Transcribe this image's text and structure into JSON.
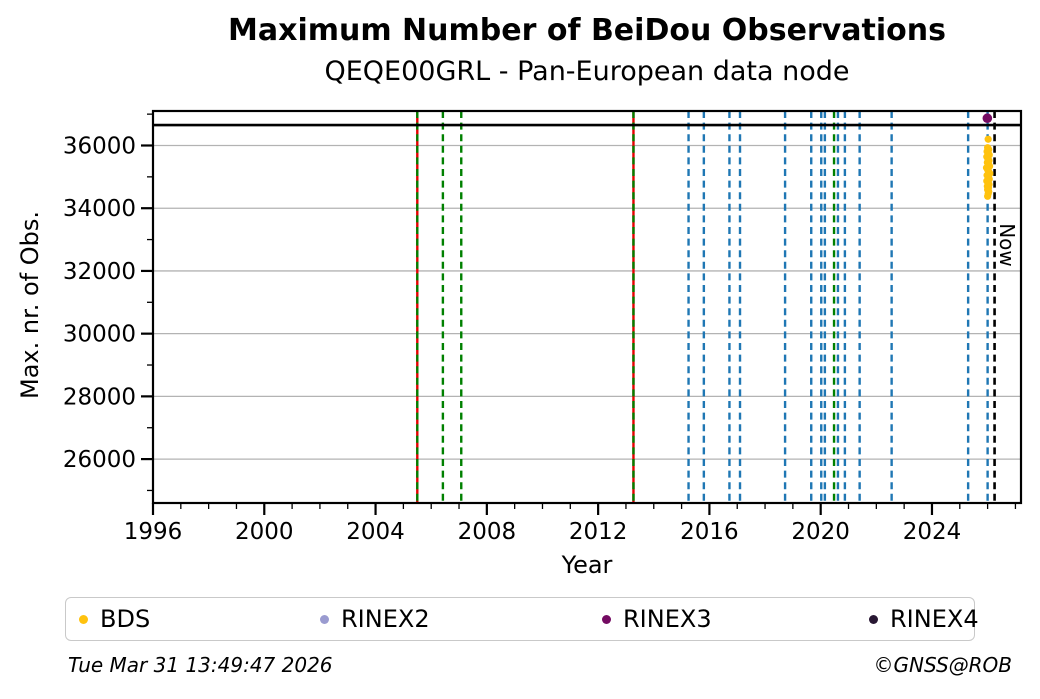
{
  "title": "Maximum Number of BeiDou Observations",
  "subtitle": "QEQE00GRL - Pan-European data node",
  "footer": {
    "timestamp": "Tue Mar 31 13:49:47 2026",
    "credit": "©GNSS@ROB"
  },
  "legend": {
    "items": [
      {
        "label": "BDS",
        "color": "#ffc20e"
      },
      {
        "label": "RINEX2",
        "color": "#9a9bd0"
      },
      {
        "label": "RINEX3",
        "color": "#740b62"
      },
      {
        "label": "RINEX4",
        "color": "#281733"
      }
    ]
  },
  "chart_data": {
    "type": "scatter",
    "title": "Maximum Number of BeiDou Observations",
    "subtitle": "QEQE00GRL - Pan-European data node",
    "xlabel": "Year",
    "ylabel": "Max. nr. of Obs.",
    "xlim": [
      1996,
      2027.2
    ],
    "ylim": [
      24600,
      37100
    ],
    "xticks": [
      1996,
      2000,
      2004,
      2008,
      2012,
      2016,
      2020,
      2024
    ],
    "yticks": [
      26000,
      28000,
      30000,
      32000,
      34000,
      36000
    ],
    "grid": {
      "horizontal": true,
      "color": "#b3b3b3"
    },
    "hline": {
      "y": 36650,
      "color": "#000000",
      "style": "solid"
    },
    "now_line": {
      "x": 2026.25,
      "label": "Now",
      "color": "#000000",
      "style": "dashed"
    },
    "vlines": {
      "red_solid": {
        "color": "#e60000",
        "years": [
          2005.5,
          2013.27
        ]
      },
      "green_dashed": {
        "color": "#008000",
        "years": [
          2005.5,
          2006.42,
          2007.08,
          2013.27,
          2020.48
        ]
      },
      "blue_dashed": {
        "color": "#1f77b4",
        "years": [
          2015.25,
          2015.8,
          2016.72,
          2017.1,
          2018.72,
          2019.66,
          2020.02,
          2020.15,
          2020.62,
          2020.87,
          2021.4,
          2022.55,
          2025.3,
          2026.0
        ]
      }
    },
    "series": [
      {
        "name": "BDS",
        "color": "#ffc20e",
        "marker_r": 3.6,
        "points": [
          [
            2026.02,
            36200
          ],
          [
            2026.0,
            35930
          ],
          [
            2026.04,
            35870
          ],
          [
            2025.98,
            35810
          ],
          [
            2026.02,
            35750
          ],
          [
            2026.06,
            35700
          ],
          [
            2025.97,
            35640
          ],
          [
            2026.01,
            35580
          ],
          [
            2026.05,
            35520
          ],
          [
            2025.99,
            35460
          ],
          [
            2026.03,
            35400
          ],
          [
            2026.07,
            35340
          ],
          [
            2025.96,
            35290
          ],
          [
            2026.0,
            35230
          ],
          [
            2026.04,
            35170
          ],
          [
            2026.08,
            35110
          ],
          [
            2025.98,
            35050
          ],
          [
            2026.02,
            34990
          ],
          [
            2026.06,
            34930
          ],
          [
            2025.97,
            34870
          ],
          [
            2026.01,
            34810
          ],
          [
            2026.05,
            34760
          ],
          [
            2025.99,
            34700
          ],
          [
            2026.03,
            34650
          ],
          [
            2026.0,
            34590
          ],
          [
            2026.04,
            34530
          ],
          [
            2026.02,
            34460
          ],
          [
            2026.0,
            34380
          ]
        ]
      },
      {
        "name": "RINEX2",
        "color": "#9a9bd0",
        "marker_r": 4.2,
        "points": []
      },
      {
        "name": "RINEX3",
        "color": "#740b62",
        "marker_r": 4.8,
        "points": [
          [
            2025.99,
            36870
          ]
        ]
      },
      {
        "name": "RINEX4",
        "color": "#281733",
        "marker_r": 4.2,
        "points": []
      }
    ],
    "legend_position": "bottom"
  }
}
